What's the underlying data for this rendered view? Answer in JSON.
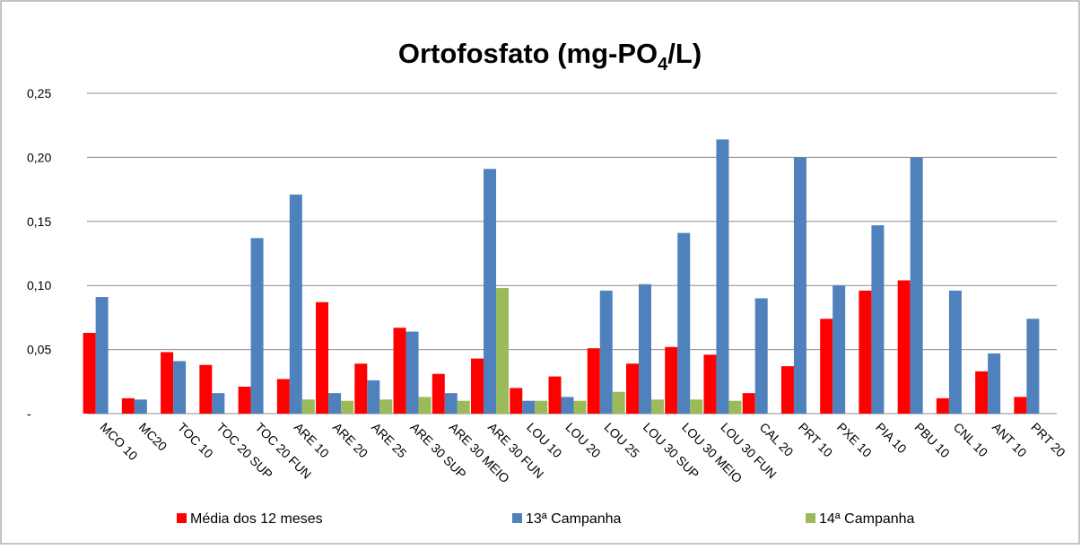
{
  "chart_data": {
    "type": "bar",
    "title": "Ortofosfato (mg-PO",
    "title_subscript": "4",
    "title_suffix": "/L)",
    "categories": [
      "MCO 10",
      "MC20",
      "TOC 10",
      "TOC 20 SUP",
      "TOC 20 FUN",
      "ARE 10",
      "ARE 20",
      "ARE 25",
      "ARE 30 SUP",
      "ARE 30 MEIO",
      "ARE 30 FUN",
      "LOU 10",
      "LOU 20",
      "LOU 25",
      "LOU 30 SUP",
      "LOU 30 MEIO",
      "LOU 30 FUN",
      "CAL 20",
      "PRT 10",
      "PXE 10",
      "PIA 10",
      "PBU 10",
      "CNL 10",
      "ANT 10",
      "PRT 20"
    ],
    "series": [
      {
        "name": "Média dos 12 meses",
        "color": "#ff0000",
        "values": [
          0.063,
          0.012,
          0.048,
          0.038,
          0.021,
          0.027,
          0.087,
          0.039,
          0.067,
          0.031,
          0.043,
          0.02,
          0.029,
          0.051,
          0.039,
          0.052,
          0.046,
          0.016,
          0.037,
          0.074,
          0.096,
          0.104,
          0.012,
          0.033,
          0.013
        ]
      },
      {
        "name": "13ª Campanha",
        "color": "#4f81bd",
        "values": [
          0.091,
          0.011,
          0.041,
          0.016,
          0.137,
          0.171,
          0.016,
          0.026,
          0.064,
          0.016,
          0.191,
          0.01,
          0.013,
          0.096,
          0.101,
          0.141,
          0.214,
          0.09,
          0.2,
          0.1,
          0.147,
          0.2,
          0.096,
          0.047,
          0.074
        ]
      },
      {
        "name": "14ª Campanha",
        "color": "#9bbb59",
        "values": [
          null,
          null,
          null,
          null,
          null,
          0.011,
          0.01,
          0.011,
          0.013,
          0.01,
          0.098,
          0.01,
          0.01,
          0.017,
          0.011,
          0.011,
          0.01,
          null,
          null,
          null,
          null,
          null,
          null,
          null,
          null
        ]
      }
    ],
    "ylim": [
      0,
      0.25
    ],
    "yticks": [
      {
        "value": 0,
        "label": "-"
      },
      {
        "value": 0.05,
        "label": "0,05"
      },
      {
        "value": 0.1,
        "label": "0,10"
      },
      {
        "value": 0.15,
        "label": "0,15"
      },
      {
        "value": 0.2,
        "label": "0,20"
      },
      {
        "value": 0.25,
        "label": "0,25"
      }
    ],
    "grid": true,
    "legend": "bottom"
  }
}
